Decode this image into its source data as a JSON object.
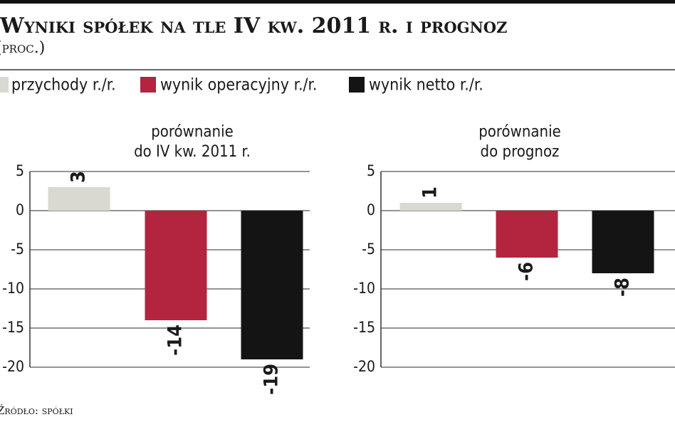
{
  "title": "Wyniki spółek na tle IV kw. 2011 r. i prognoz",
  "subtitle": "(proc.)",
  "source": "Źródło: spółki",
  "legend": {
    "items": [
      {
        "name": "przychody r./r.",
        "color": "#d9d9d1"
      },
      {
        "name": "wynik operacyjny r./r.",
        "color": "#b3243e"
      },
      {
        "name": "wynik netto r./r.",
        "color": "#141414"
      }
    ]
  },
  "chart_data": [
    {
      "type": "bar",
      "title": [
        "porównanie",
        "do IV kw. 2011 r."
      ],
      "values": [
        3,
        -14,
        -19
      ],
      "ylim": [
        -20,
        5
      ],
      "yticks": [
        5,
        0,
        -5,
        -10,
        -15,
        -20
      ],
      "grid": true
    },
    {
      "type": "bar",
      "title": [
        "porównanie",
        "do prognoz"
      ],
      "values": [
        1,
        -6,
        -8
      ],
      "ylim": [
        -20,
        5
      ],
      "yticks": [
        5,
        0,
        -5,
        -10,
        -15,
        -20
      ],
      "grid": true
    }
  ]
}
